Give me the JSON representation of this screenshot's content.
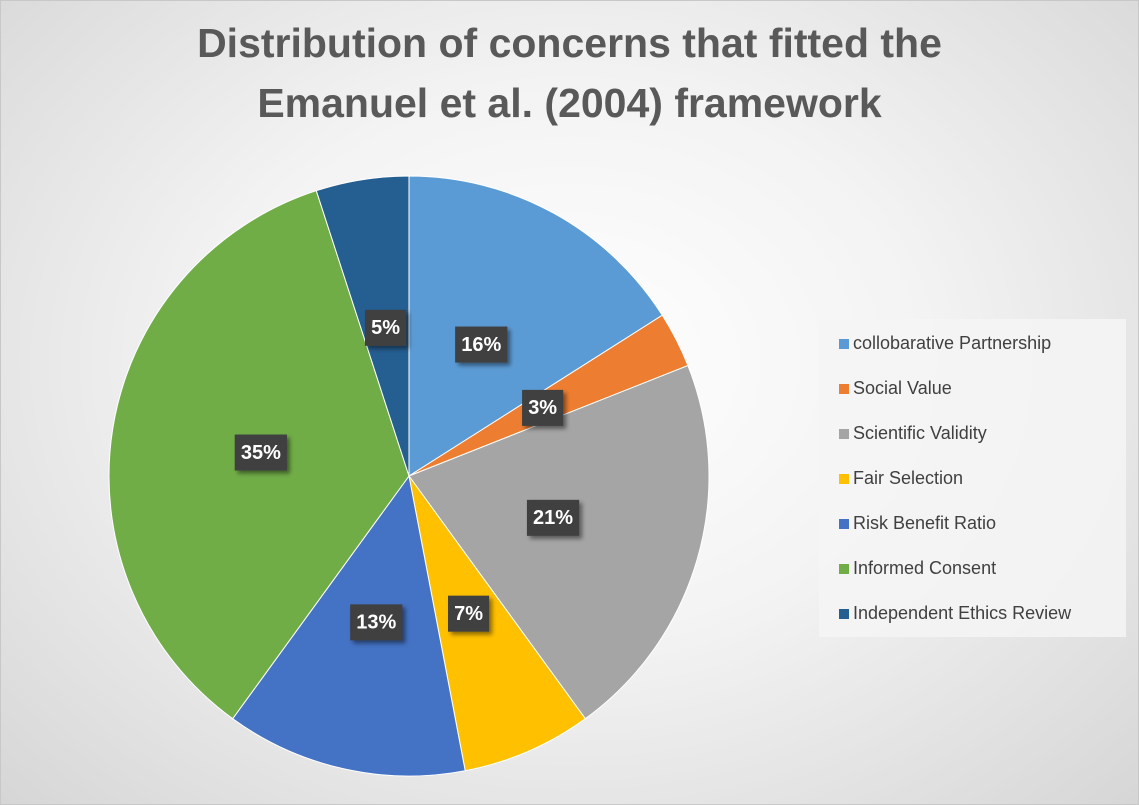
{
  "chart_data": {
    "type": "pie",
    "title": "Distribution of concerns that fitted the Emanuel et al. (2004) framework",
    "categories": [
      "collobarative Partnership",
      "Social Value",
      "Scientific  Validity",
      "Fair Selection",
      "Risk Benefit Ratio",
      "Informed Consent",
      "Independent Ethics Review"
    ],
    "values": [
      16,
      3,
      21,
      7,
      13,
      35,
      5
    ],
    "value_labels": [
      "16%",
      "3%",
      "21%",
      "7%",
      "13%",
      "35%",
      "5%"
    ],
    "colors": [
      "#5b9bd5",
      "#ed7d31",
      "#a5a5a5",
      "#ffc000",
      "#4472c4",
      "#70ad47",
      "#255e91"
    ],
    "legend": "right"
  }
}
